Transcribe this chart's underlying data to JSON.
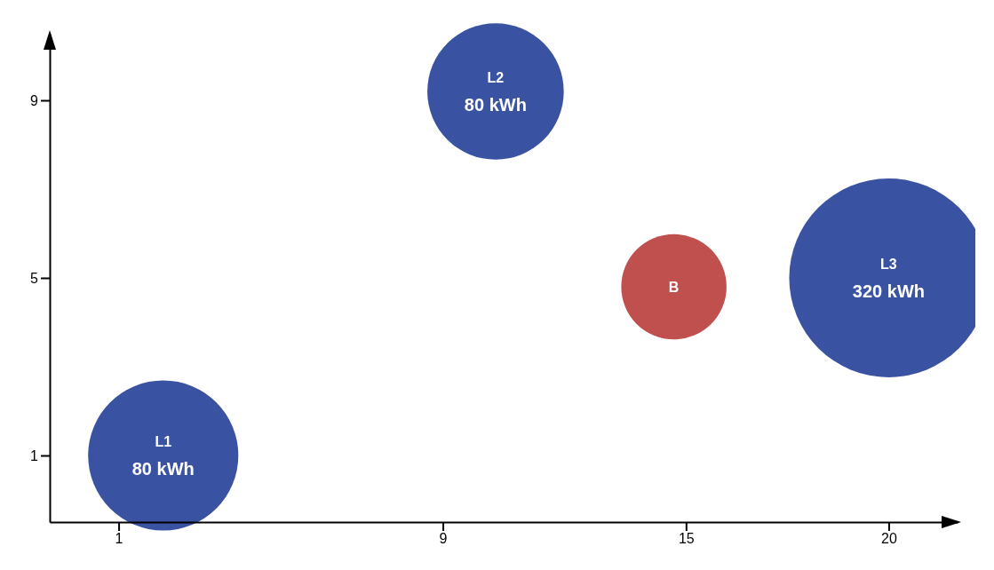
{
  "chart_data": {
    "type": "bubble",
    "xlim": [
      -0.7,
      21.7
    ],
    "ylim": [
      -0.5,
      10.5
    ],
    "xticks": [
      1,
      9,
      15,
      20
    ],
    "yticks": [
      1,
      5,
      9
    ],
    "grid": false,
    "series": [
      {
        "x": [
          2.1,
          10.3,
          14.7,
          20
        ],
        "values": [
          1,
          9.2,
          4.8,
          5
        ],
        "sizes": [
          0.57,
          0.47,
          0.28,
          1
        ],
        "colors": [
          "#3a52a2",
          "#3a52a2",
          "#c0504d",
          "#3a52a2"
        ]
      }
    ],
    "annotations": [
      {
        "text": "L1",
        "x": 2.1,
        "y": 1
      },
      {
        "text": "80 kWh",
        "x": 2.1,
        "y": 1
      },
      {
        "text": "L2",
        "x": 10.3,
        "y": 9.2
      },
      {
        "text": "80 kWh",
        "x": 10.3,
        "y": 9.2
      },
      {
        "text": "B",
        "x": 14.7,
        "y": 4.8
      },
      {
        "text": "L3",
        "x": 20,
        "y": 5
      },
      {
        "text": "320 kWh",
        "x": 20,
        "y": 5
      }
    ]
  }
}
